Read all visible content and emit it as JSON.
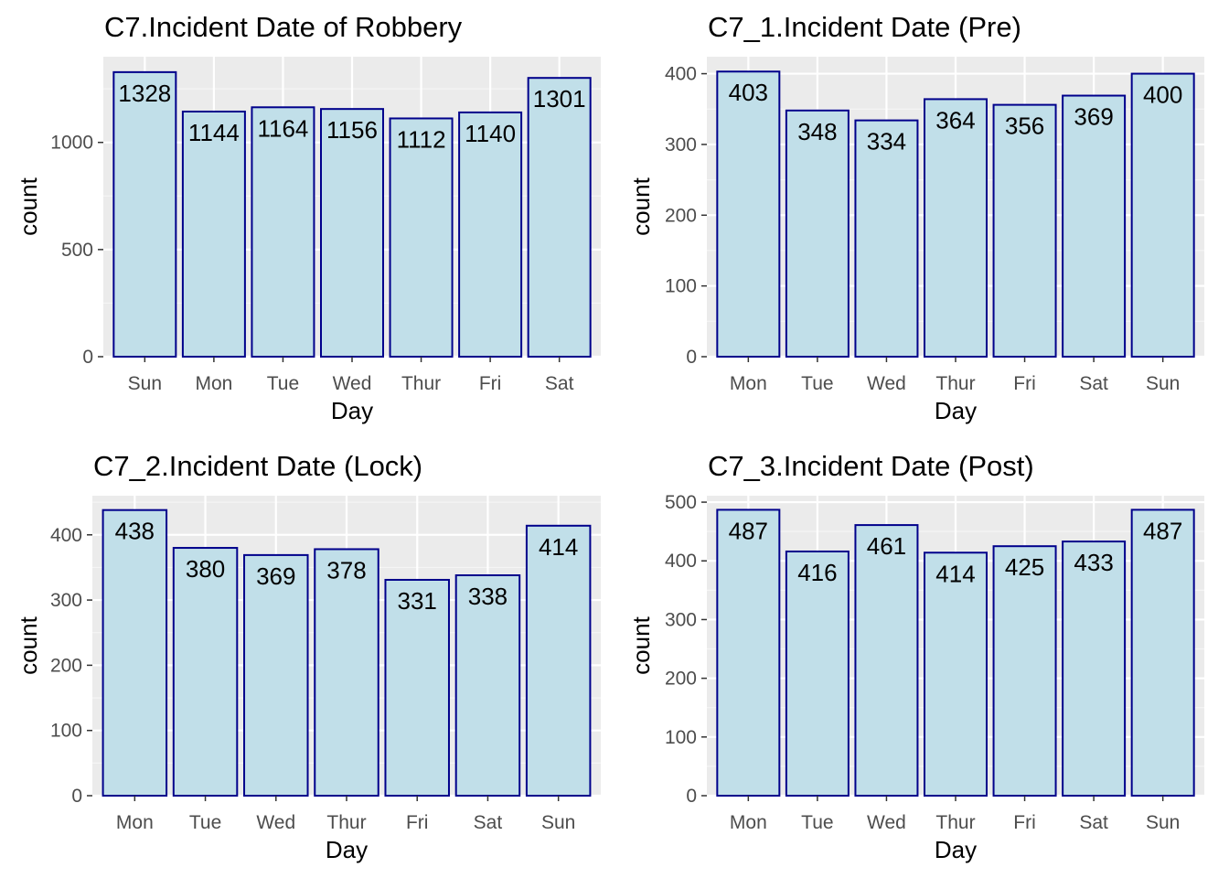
{
  "chart_data": [
    {
      "type": "bar",
      "title": "C7.Incident Date of Robbery",
      "xlabel": "Day",
      "ylabel": "count",
      "categories": [
        "Sun",
        "Mon",
        "Tue",
        "Wed",
        "Thur",
        "Fri",
        "Sat"
      ],
      "values": [
        1328,
        1144,
        1164,
        1156,
        1112,
        1140,
        1301
      ],
      "data_labels": [
        "1328",
        "1144",
        "1164",
        "1156",
        "1112",
        "1140",
        "1301"
      ],
      "yticks": [
        0,
        500,
        1000
      ],
      "ytick_labels": [
        "0",
        "500",
        "1000"
      ],
      "ylim": [
        0,
        1400
      ],
      "grid": true
    },
    {
      "type": "bar",
      "title": "C7_1.Incident Date (Pre)",
      "xlabel": "Day",
      "ylabel": "count",
      "categories": [
        "Mon",
        "Tue",
        "Wed",
        "Thur",
        "Fri",
        "Sat",
        "Sun"
      ],
      "values": [
        403,
        348,
        334,
        364,
        356,
        369,
        400
      ],
      "data_labels": [
        "403",
        "348",
        "334",
        "364",
        "356",
        "369",
        "400"
      ],
      "yticks": [
        0,
        100,
        200,
        300,
        400
      ],
      "ytick_labels": [
        "0",
        "100",
        "200",
        "300",
        "400"
      ],
      "ylim": [
        0,
        424
      ],
      "grid": true
    },
    {
      "type": "bar",
      "title": "C7_2.Incident Date (Lock)",
      "xlabel": "Day",
      "ylabel": "count",
      "categories": [
        "Mon",
        "Tue",
        "Wed",
        "Thur",
        "Fri",
        "Sat",
        "Sun"
      ],
      "values": [
        438,
        380,
        369,
        378,
        331,
        338,
        414
      ],
      "data_labels": [
        "438",
        "380",
        "369",
        "378",
        "331",
        "338",
        "414"
      ],
      "yticks": [
        0,
        100,
        200,
        300,
        400
      ],
      "ytick_labels": [
        "0",
        "100",
        "200",
        "300",
        "400"
      ],
      "ylim": [
        0,
        460
      ],
      "grid": true
    },
    {
      "type": "bar",
      "title": "C7_3.Incident Date (Post)",
      "xlabel": "Day",
      "ylabel": "count",
      "categories": [
        "Mon",
        "Tue",
        "Wed",
        "Thur",
        "Fri",
        "Sat",
        "Sun"
      ],
      "values": [
        487,
        416,
        461,
        414,
        425,
        433,
        487
      ],
      "data_labels": [
        "487",
        "416",
        "461",
        "414",
        "425",
        "433",
        "487"
      ],
      "yticks": [
        0,
        100,
        200,
        300,
        400,
        500
      ],
      "ytick_labels": [
        "0",
        "100",
        "200",
        "300",
        "400",
        "500"
      ],
      "ylim": [
        0,
        511
      ],
      "grid": true
    }
  ],
  "colors": {
    "panel_background": "#ebebeb",
    "grid_major": "#ffffff",
    "grid_minor": "#f5f5f5",
    "bar_fill": "#c1dfe9",
    "bar_outline": "#00008b",
    "tick_text": "#4d4d4d",
    "tick_mark": "#333333",
    "text": "#000000"
  }
}
